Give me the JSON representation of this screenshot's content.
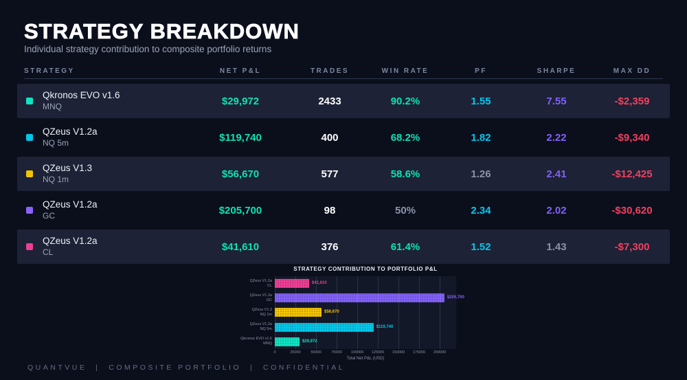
{
  "page": {
    "title": "STRATEGY BREAKDOWN",
    "subtitle": "Individual strategy contribution to composite portfolio returns",
    "footer": "QUANTVUE  |  COMPOSITE PORTFOLIO  |  CONFIDENTIAL"
  },
  "colors": {
    "background": "#0b0f1c",
    "row_highlight": "#1d2236",
    "green": "#0de2b4",
    "cyan": "#00c8f0",
    "purple": "#8161f6",
    "red": "#f43f5e",
    "muted": "#8b93a7",
    "white": "#ffffff",
    "yellow": "#f2c400",
    "pink": "#ef3d96"
  },
  "table": {
    "columns": [
      "STRATEGY",
      "NET P&L",
      "TRADES",
      "WIN RATE",
      "PF",
      "SHARPE",
      "MAX DD"
    ],
    "rows": [
      {
        "name": "Qkronos EVO v1.6",
        "instrument": "MNQ",
        "marker_color": "#0fe3c2",
        "net_pnl": "$29,972",
        "trades": "2433",
        "win_rate": "90.2%",
        "win_rate_color": "green",
        "pf": "1.55",
        "pf_color": "cyan",
        "sharpe": "7.55",
        "sharpe_color": "purple",
        "max_dd": "-$2,359",
        "highlighted": true
      },
      {
        "name": "QZeus V1.2a",
        "instrument": "NQ 5m",
        "marker_color": "#00c8ea",
        "net_pnl": "$119,740",
        "trades": "400",
        "win_rate": "68.2%",
        "win_rate_color": "green",
        "pf": "1.82",
        "pf_color": "cyan",
        "sharpe": "2.22",
        "sharpe_color": "purple",
        "max_dd": "-$9,340",
        "highlighted": false
      },
      {
        "name": "QZeus V1.3",
        "instrument": "NQ 1m",
        "marker_color": "#f2c400",
        "net_pnl": "$56,670",
        "trades": "577",
        "win_rate": "58.6%",
        "win_rate_color": "green",
        "pf": "1.26",
        "pf_color": "muted",
        "sharpe": "2.41",
        "sharpe_color": "purple",
        "max_dd": "-$12,425",
        "highlighted": true
      },
      {
        "name": "QZeus V1.2a",
        "instrument": "GC",
        "marker_color": "#8a64f8",
        "net_pnl": "$205,700",
        "trades": "98",
        "win_rate": "50%",
        "win_rate_color": "muted",
        "pf": "2.34",
        "pf_color": "cyan",
        "sharpe": "2.02",
        "sharpe_color": "purple",
        "max_dd": "-$30,620",
        "highlighted": false
      },
      {
        "name": "QZeus V1.2a",
        "instrument": "CL",
        "marker_color": "#ef3d96",
        "net_pnl": "$41,610",
        "trades": "376",
        "win_rate": "61.4%",
        "win_rate_color": "green",
        "pf": "1.52",
        "pf_color": "cyan",
        "sharpe": "1.43",
        "sharpe_color": "muted",
        "max_dd": "-$7,300",
        "highlighted": true
      }
    ]
  },
  "chart_data": {
    "type": "bar",
    "orientation": "horizontal",
    "title": "STRATEGY CONTRIBUTION TO PORTFOLIO P&L",
    "xlabel": "Total Net P&L (USD)",
    "categories": [
      [
        "QZeus V1.2a",
        "CL"
      ],
      [
        "QZeus V1.2a",
        "GC"
      ],
      [
        "QZeus V1.3",
        "NQ 1m"
      ],
      [
        "QZeus V1.2a",
        "NQ 5m"
      ],
      [
        "Qkronos EVO v1.6",
        "MNQ"
      ]
    ],
    "values": [
      41610,
      205700,
      56670,
      119740,
      29972
    ],
    "value_labels": [
      "$41,610",
      "$205,700",
      "$56,670",
      "$119,740",
      "$29,972"
    ],
    "bar_colors": [
      "#ef3d96",
      "#8161f6",
      "#f2c400",
      "#00c8ea",
      "#0fe3c2"
    ],
    "xlim": [
      0,
      220000
    ],
    "xticks": [
      0,
      25000,
      50000,
      75000,
      100000,
      125000,
      150000,
      175000,
      200000
    ],
    "grid": true,
    "legend": false
  }
}
